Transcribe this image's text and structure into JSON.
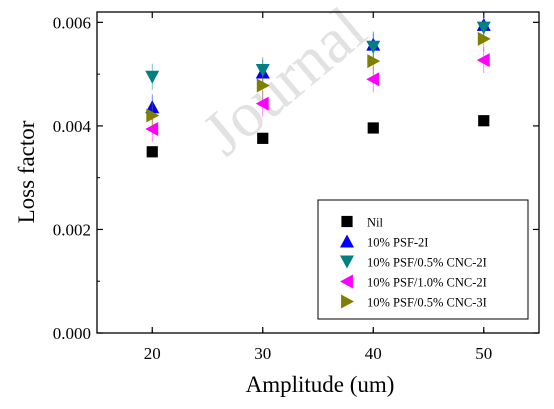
{
  "watermark": "Journal",
  "chart_data": {
    "type": "scatter",
    "xlabel": "Amplitude (um)",
    "ylabel": "Loss factor",
    "xlim": [
      15,
      55
    ],
    "ylim": [
      0,
      0.0062
    ],
    "x_ticks": [
      "20",
      "30",
      "40",
      "50"
    ],
    "y_ticks": [
      "0.000",
      "0.002",
      "0.004",
      "0.006"
    ],
    "legend_position": "bottom-right",
    "series": [
      {
        "name": "Nil",
        "marker": "square",
        "color": "#000000",
        "x": [
          20,
          30,
          40,
          50
        ],
        "y": [
          0.0035,
          0.00376,
          0.00396,
          0.0041
        ]
      },
      {
        "name": "10% PSF-2I",
        "marker": "triangle-up",
        "color": "#0000ff",
        "x": [
          20,
          30,
          40,
          50
        ],
        "y": [
          0.00436,
          0.00503,
          0.00557,
          0.00595
        ]
      },
      {
        "name": "10% PSF/0.5% CNC-2I",
        "marker": "triangle-down",
        "color": "#008080",
        "x": [
          20,
          30,
          40,
          50
        ],
        "y": [
          0.00495,
          0.00508,
          0.00553,
          0.0059
        ]
      },
      {
        "name": "10% PSF/1.0% CNC-2I",
        "marker": "triangle-left",
        "color": "#ff00ff",
        "x": [
          20,
          30,
          40,
          50
        ],
        "y": [
          0.00394,
          0.00443,
          0.0049,
          0.00527
        ]
      },
      {
        "name": "10% PSF/0.5% CNC-3I",
        "marker": "triangle-right",
        "color": "#808000",
        "x": [
          20,
          30,
          40,
          50
        ],
        "y": [
          0.0042,
          0.00478,
          0.00525,
          0.00568
        ]
      }
    ]
  }
}
